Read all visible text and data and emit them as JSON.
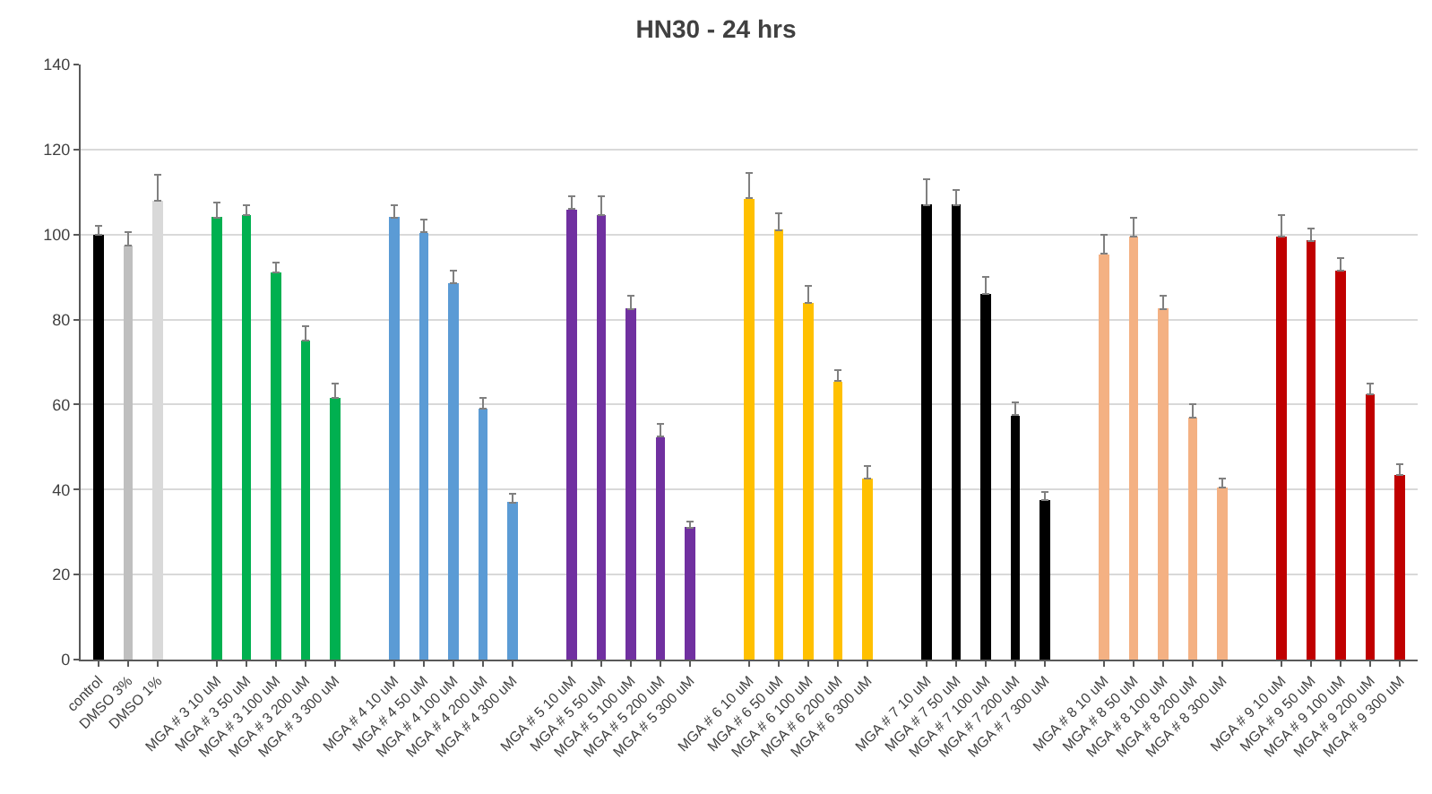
{
  "chart_data": {
    "type": "bar",
    "title": "HN30 - 24 hrs",
    "categories": [
      "control",
      "DMSO 3%",
      "DMSO 1%",
      null,
      "MGA # 3 10 uM",
      "MGA # 3 50 uM",
      "MGA # 3 100 uM",
      "MGA # 3 200 uM",
      "MGA # 3 300 uM",
      null,
      "MGA # 4 10 uM",
      "MGA # 4 50 uM",
      "MGA # 4 100 uM",
      "MGA # 4 200 uM",
      "MGA # 4 300 uM",
      null,
      "MGA # 5 10 uM",
      "MGA # 5 50 uM",
      "MGA # 5 100 uM",
      "MGA # 5 200 uM",
      "MGA # 5 300 uM",
      null,
      "MGA # 6 10 uM",
      "MGA # 6 50 uM",
      "MGA # 6 100 uM",
      "MGA # 6 200 uM",
      "MGA # 6 300 uM",
      null,
      "MGA # 7 10 uM",
      "MGA # 7 50 uM",
      "MGA # 7 100 uM",
      "MGA # 7 200 uM",
      "MGA # 7 300 uM",
      null,
      "MGA # 8 10 uM",
      "MGA # 8 50 uM",
      "MGA # 8 100 uM",
      "MGA # 8 200 uM",
      "MGA # 8 300 uM",
      null,
      "MGA # 9 10 uM",
      "MGA # 9 50 uM",
      "MGA # 9 100 uM",
      "MGA # 9 200 uM",
      "MGA # 9 300 uM"
    ],
    "values": [
      100,
      97.5,
      108,
      null,
      104,
      104.5,
      91,
      75,
      61.5,
      null,
      104,
      100.5,
      88.5,
      59,
      37,
      null,
      106,
      104.5,
      82.5,
      52.5,
      31,
      null,
      108.5,
      101,
      84,
      65.5,
      42.5,
      null,
      107,
      107,
      86,
      57.5,
      37.5,
      null,
      95.5,
      99.5,
      82.5,
      57,
      40.5,
      null,
      99.5,
      98.5,
      91.5,
      62.5,
      43.5
    ],
    "colors": [
      "#000000",
      "#bfbfbf",
      "#d9d9d9",
      null,
      "#00b050",
      "#00b050",
      "#00b050",
      "#00b050",
      "#00b050",
      null,
      "#5b9bd5",
      "#5b9bd5",
      "#5b9bd5",
      "#5b9bd5",
      "#5b9bd5",
      null,
      "#7030a0",
      "#7030a0",
      "#7030a0",
      "#7030a0",
      "#7030a0",
      null,
      "#ffc000",
      "#ffc000",
      "#ffc000",
      "#ffc000",
      "#ffc000",
      null,
      "#000000",
      "#000000",
      "#000000",
      "#000000",
      "#000000",
      null,
      "#f4b183",
      "#f4b183",
      "#f4b183",
      "#f4b183",
      "#f4b183",
      null,
      "#c00000",
      "#c00000",
      "#c00000",
      "#c00000",
      "#c00000"
    ],
    "errors": [
      [
        100,
        102
      ],
      [
        97.5,
        100.5
      ],
      [
        108,
        114
      ],
      null,
      [
        104,
        107.5
      ],
      [
        104.5,
        107
      ],
      [
        91,
        93.5
      ],
      [
        75,
        78.5
      ],
      [
        61.5,
        65
      ],
      null,
      [
        104,
        107
      ],
      [
        100.5,
        103.5
      ],
      [
        88.5,
        91.5
      ],
      [
        59,
        61.5
      ],
      [
        37,
        39
      ],
      null,
      [
        106,
        109
      ],
      [
        104.5,
        109
      ],
      [
        82.5,
        85.5
      ],
      [
        52.5,
        55.5
      ],
      [
        31,
        32.5
      ],
      null,
      [
        108.5,
        114.5
      ],
      [
        101,
        105
      ],
      [
        84,
        88
      ],
      [
        65.5,
        68
      ],
      [
        42.5,
        45.5
      ],
      null,
      [
        107,
        113
      ],
      [
        107,
        110.5
      ],
      [
        86,
        90
      ],
      [
        57.5,
        60.5
      ],
      [
        37.5,
        39.5
      ],
      null,
      [
        95.5,
        100
      ],
      [
        99.5,
        104
      ],
      [
        82.5,
        85.5
      ],
      [
        57,
        60
      ],
      [
        40.5,
        42.5
      ],
      null,
      [
        99.5,
        104.5
      ],
      [
        98.5,
        101.5
      ],
      [
        91.5,
        94.5
      ],
      [
        62.5,
        65
      ],
      [
        43.5,
        46
      ]
    ],
    "ylim": [
      0,
      140
    ],
    "yticks": [
      0,
      20,
      40,
      60,
      80,
      100,
      120,
      140
    ],
    "grid": "y",
    "legend": false
  }
}
